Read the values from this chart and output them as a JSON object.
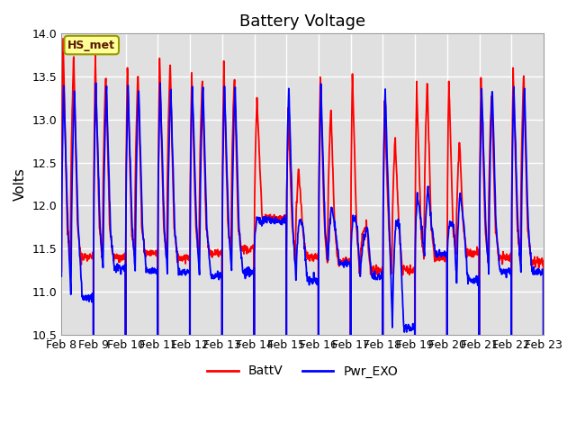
{
  "title": "Battery Voltage",
  "ylabel": "Volts",
  "xlim": [
    0,
    15
  ],
  "ylim": [
    10.5,
    14.0
  ],
  "yticks": [
    10.5,
    11.0,
    11.5,
    12.0,
    12.5,
    13.0,
    13.5,
    14.0
  ],
  "xtick_labels": [
    "Feb 8",
    "Feb 9",
    "Feb 10",
    "Feb 11",
    "Feb 12",
    "Feb 13",
    "Feb 14",
    "Feb 15",
    "Feb 16",
    "Feb 17",
    "Feb 18",
    "Feb 19",
    "Feb 20",
    "Feb 21",
    "Feb 22",
    "Feb 23"
  ],
  "xtick_positions": [
    0,
    1,
    2,
    3,
    4,
    5,
    6,
    7,
    8,
    9,
    10,
    11,
    12,
    13,
    14,
    15
  ],
  "line_red_color": "#ff0000",
  "line_blue_color": "#0000ff",
  "bg_outer": "#ffffff",
  "bg_inner": "#e0e0e0",
  "grid_color": "#ffffff",
  "annotation_text": "HS_met",
  "legend_labels": [
    "BattV",
    "Pwr_EXO"
  ],
  "title_fontsize": 13,
  "linewidth": 1.3
}
